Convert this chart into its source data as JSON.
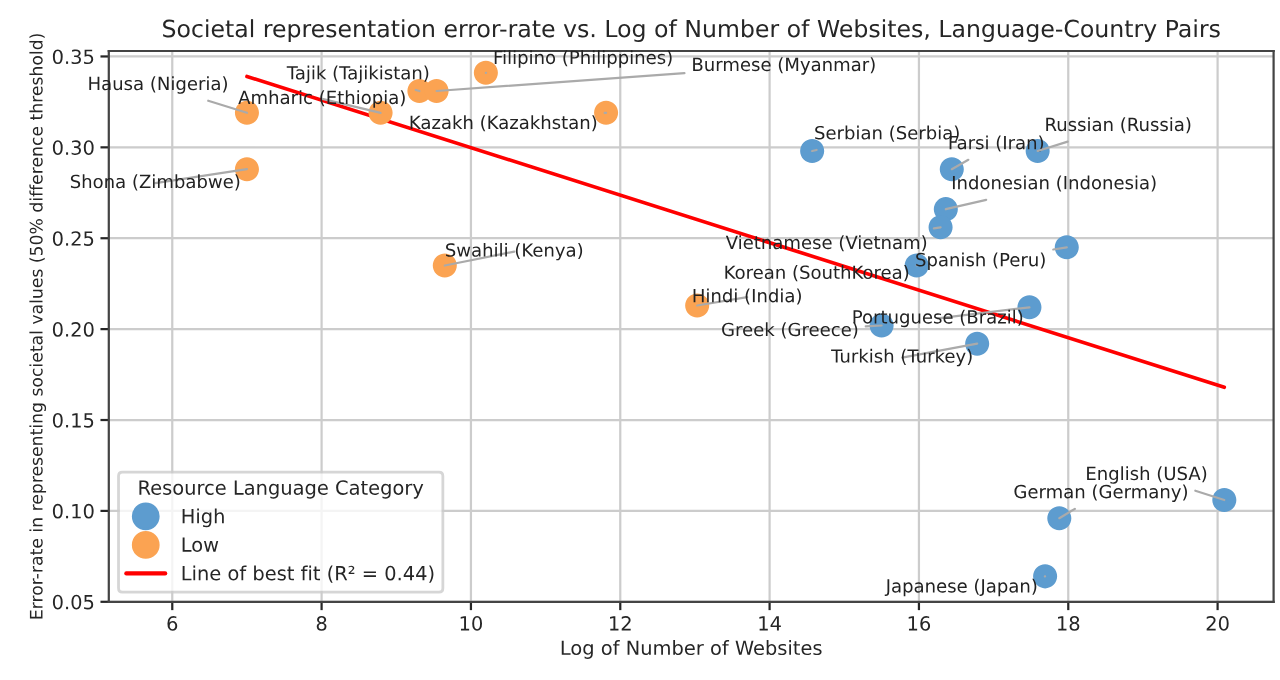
{
  "chart_data": {
    "type": "scatter",
    "title": "Societal representation error-rate vs. Log of Number of Websites, Language-Country Pairs",
    "xlabel": "Log of Number of Websites",
    "ylabel": "Error-rate in representing societal values (50% difference threshold)",
    "legend_title": "Resource Language Category",
    "legend": "bottom left",
    "grid": true,
    "xlim": [
      5.15,
      20.75
    ],
    "ylim": [
      0.05,
      0.353
    ],
    "xticks": [
      6,
      8,
      10,
      12,
      14,
      16,
      18,
      20
    ],
    "yticks": [
      0.05,
      {
        "value": 0.1,
        "label": "0.10"
      },
      0.15,
      {
        "value": 0.2,
        "label": "0.20"
      },
      0.25,
      {
        "value": 0.3,
        "label": "0.30"
      },
      0.35
    ],
    "series": [
      {
        "name": "High",
        "color": "#5d9ccf",
        "marker": "circle",
        "x": [
          14.57,
          16.44,
          17.59,
          16.36,
          16.29,
          15.97,
          17.98,
          17.48,
          15.5,
          16.78,
          20.09,
          17.88,
          17.69
        ],
        "values": [
          0.298,
          0.288,
          0.298,
          0.266,
          0.256,
          0.235,
          0.245,
          0.212,
          0.202,
          0.192,
          0.106,
          0.096,
          0.064
        ]
      },
      {
        "name": "Low",
        "color": "#fba352",
        "marker": "circle",
        "x": [
          7.0,
          7.0,
          8.79,
          9.31,
          9.54,
          10.2,
          11.81,
          9.65,
          13.03
        ],
        "values": [
          0.319,
          0.288,
          0.319,
          0.331,
          0.331,
          0.341,
          0.319,
          0.235,
          0.213
        ]
      },
      {
        "name": "Line of best fit (R² = 0.44)",
        "type": "line",
        "color": "#ff0000",
        "x": [
          7.0,
          20.09
        ],
        "values": [
          0.339,
          0.168
        ]
      }
    ],
    "annotations": [
      {
        "text": "Serbian (Serbia)",
        "x": 14.57,
        "y": 0.298
      },
      {
        "text": "Farsi (Iran)",
        "x": 16.44,
        "y": 0.288
      },
      {
        "text": "Russian (Russia)",
        "x": 17.59,
        "y": 0.298
      },
      {
        "text": "Indonesian (Indonesia)",
        "x": 16.36,
        "y": 0.266
      },
      {
        "text": "Vietnamese (Vietnam)",
        "x": 16.29,
        "y": 0.256
      },
      {
        "text": "Korean (SouthKorea)",
        "x": 15.97,
        "y": 0.235
      },
      {
        "text": "Spanish (Peru)",
        "x": 17.98,
        "y": 0.245
      },
      {
        "text": "Portuguese (Brazil)",
        "x": 17.48,
        "y": 0.212
      },
      {
        "text": "Greek (Greece)",
        "x": 15.5,
        "y": 0.202
      },
      {
        "text": "Turkish (Turkey)",
        "x": 16.78,
        "y": 0.192
      },
      {
        "text": "English (USA)",
        "x": 20.09,
        "y": 0.106
      },
      {
        "text": "German (Germany)",
        "x": 17.88,
        "y": 0.096
      },
      {
        "text": "Japanese (Japan)",
        "x": 17.69,
        "y": 0.064
      },
      {
        "text": "Hausa (Nigeria)",
        "x": 7.0,
        "y": 0.319
      },
      {
        "text": "Shona (Zimbabwe)",
        "x": 7.0,
        "y": 0.288
      },
      {
        "text": "Amharic (Ethiopia)",
        "x": 8.79,
        "y": 0.319
      },
      {
        "text": "Tajik (Tajikistan)",
        "x": 9.31,
        "y": 0.331
      },
      {
        "text": "Burmese (Myanmar)",
        "x": 9.54,
        "y": 0.331
      },
      {
        "text": "Filipino (Philippines)",
        "x": 10.2,
        "y": 0.341
      },
      {
        "text": "Kazakh (Kazakhstan)",
        "x": 11.81,
        "y": 0.319
      },
      {
        "text": "Swahili (Kenya)",
        "x": 9.65,
        "y": 0.235
      },
      {
        "text": "Hindi (India)",
        "x": 13.03,
        "y": 0.213
      }
    ]
  }
}
